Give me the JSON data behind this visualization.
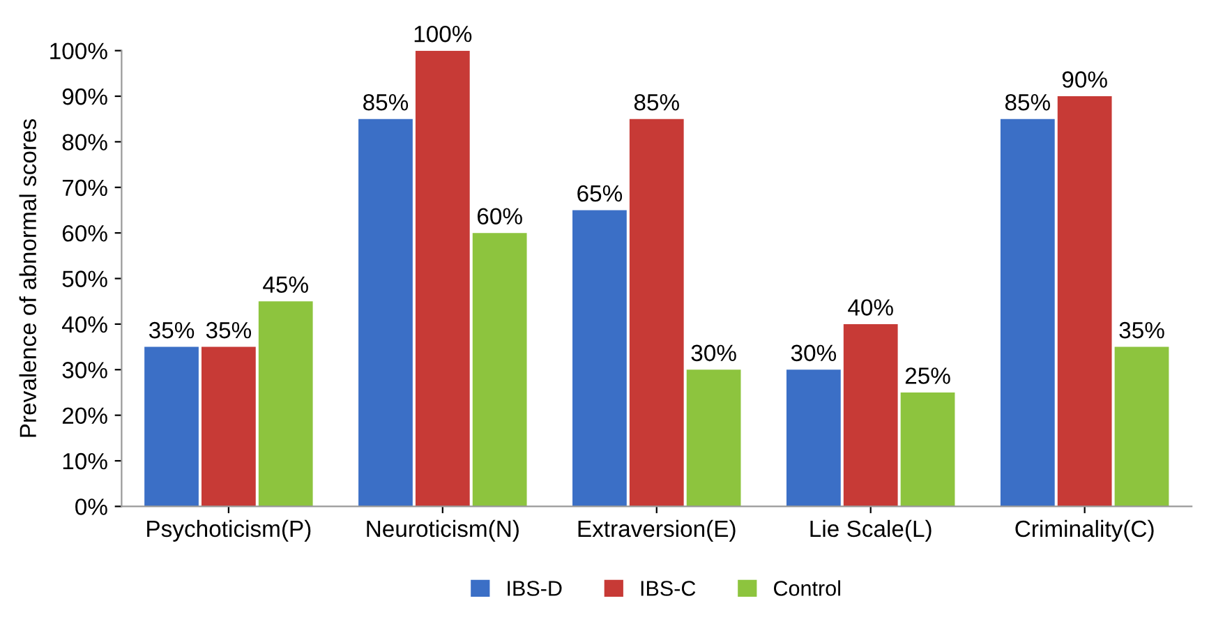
{
  "chart_data": {
    "type": "bar",
    "ylabel": "Prevalence of abnormal scores",
    "categories": [
      "Psychoticism(P)",
      "Neuroticism(N)",
      "Extraversion(E)",
      "Lie Scale(L)",
      "Criminality(C)"
    ],
    "series": [
      {
        "name": "IBS-D",
        "color": "#3b6fc6",
        "values": [
          35,
          85,
          65,
          30,
          85
        ],
        "value_labels": [
          "35%",
          "85%",
          "65%",
          "30%",
          "85%"
        ]
      },
      {
        "name": "IBS-C",
        "color": "#c73a36",
        "values": [
          35,
          100,
          85,
          40,
          90
        ],
        "value_labels": [
          "35%",
          "100%",
          "85%",
          "40%",
          "90%"
        ]
      },
      {
        "name": "Control",
        "color": "#8dc43e",
        "values": [
          45,
          60,
          30,
          25,
          35
        ],
        "value_labels": [
          "45%",
          "60%",
          "30%",
          "25%",
          "35%"
        ]
      }
    ],
    "ylim": [
      0,
      100
    ],
    "yticks": [
      {
        "value": 0,
        "label": "0%"
      },
      {
        "value": 10,
        "label": "10%"
      },
      {
        "value": 20,
        "label": "20%"
      },
      {
        "value": 30,
        "label": "30%"
      },
      {
        "value": 40,
        "label": "40%"
      },
      {
        "value": 50,
        "label": "50%"
      },
      {
        "value": 60,
        "label": "60%"
      },
      {
        "value": 70,
        "label": "70%"
      },
      {
        "value": 80,
        "label": "80%"
      },
      {
        "value": 90,
        "label": "90%"
      },
      {
        "value": 100,
        "label": "100%"
      }
    ],
    "legend": "bottom",
    "grid": false
  }
}
